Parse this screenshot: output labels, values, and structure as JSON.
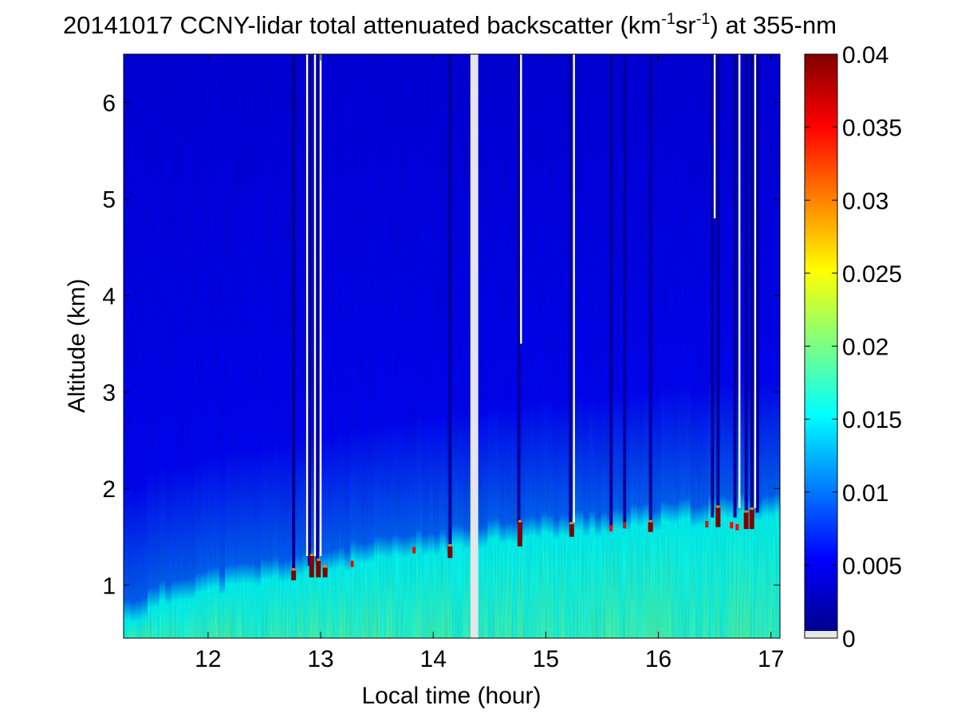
{
  "chart_data": {
    "type": "heatmap",
    "title": {
      "main": "20141017 CCNY-lidar total attenuated backscatter (km",
      "exp1": "-1",
      "mid": "sr",
      "exp2": "-1",
      "end": ") at 355-nm"
    },
    "xlabel": "Local time (hour)",
    "ylabel": "Altitude (km)",
    "xlim": [
      11.25,
      17.08
    ],
    "ylim": [
      0.45,
      6.5
    ],
    "xticks": [
      12,
      13,
      14,
      15,
      16,
      17
    ],
    "yticks": [
      1,
      2,
      3,
      4,
      5,
      6
    ],
    "colorbar": {
      "colormap": "jet",
      "range": [
        0,
        0.04
      ],
      "ticks": [
        "0",
        "0.005",
        "0.01",
        "0.015",
        "0.02",
        "0.025",
        "0.03",
        "0.035",
        "0.04"
      ],
      "tick_values": [
        0,
        0.005,
        0.01,
        0.015,
        0.02,
        0.025,
        0.03,
        0.035,
        0.04
      ],
      "below_range_color": "#e6e6e6"
    },
    "data_gap": {
      "x_start": 14.33,
      "x_end": 14.4,
      "color": "#e6e6e6"
    },
    "profile_levels": {
      "free_troposphere": 0.004,
      "upper_boundary_layer": 0.009,
      "boundary_layer_base": 0.015,
      "boundary_layer_peak": 0.018
    },
    "boundary_layer_top": [
      {
        "x": 11.3,
        "y": 0.62
      },
      {
        "x": 11.8,
        "y": 0.9
      },
      {
        "x": 12.3,
        "y": 0.98
      },
      {
        "x": 12.8,
        "y": 1.1
      },
      {
        "x": 13.3,
        "y": 1.2
      },
      {
        "x": 13.8,
        "y": 1.3
      },
      {
        "x": 14.3,
        "y": 1.38
      },
      {
        "x": 14.45,
        "y": 1.45
      },
      {
        "x": 15.0,
        "y": 1.5
      },
      {
        "x": 15.5,
        "y": 1.55
      },
      {
        "x": 16.0,
        "y": 1.6
      },
      {
        "x": 16.5,
        "y": 1.68
      },
      {
        "x": 17.05,
        "y": 1.72
      }
    ],
    "cloud_columns": [
      {
        "x": 12.76,
        "cloud_base": 1.05,
        "cloud_top": 1.15
      },
      {
        "x": 12.92,
        "cloud_base": 1.08,
        "cloud_top": 1.3
      },
      {
        "x": 12.98,
        "cloud_base": 1.08,
        "cloud_top": 1.25
      },
      {
        "x": 13.04,
        "cloud_base": 1.08,
        "cloud_top": 1.18
      },
      {
        "x": 14.15,
        "cloud_base": 1.28,
        "cloud_top": 1.4
      },
      {
        "x": 14.77,
        "cloud_base": 1.4,
        "cloud_top": 1.65
      },
      {
        "x": 15.23,
        "cloud_base": 1.5,
        "cloud_top": 1.63
      },
      {
        "x": 15.93,
        "cloud_base": 1.55,
        "cloud_top": 1.65
      },
      {
        "x": 16.53,
        "cloud_base": 1.6,
        "cloud_top": 1.8
      },
      {
        "x": 16.78,
        "cloud_base": 1.58,
        "cloud_top": 1.75
      },
      {
        "x": 16.83,
        "cloud_base": 1.58,
        "cloud_top": 1.78
      }
    ],
    "small_cloud_patches": [
      {
        "x": 13.28,
        "y": 1.22
      },
      {
        "x": 13.83,
        "y": 1.36
      },
      {
        "x": 15.58,
        "y": 1.59
      },
      {
        "x": 15.7,
        "y": 1.62
      },
      {
        "x": 16.43,
        "y": 1.63
      },
      {
        "x": 16.65,
        "y": 1.62
      },
      {
        "x": 16.7,
        "y": 1.6
      }
    ],
    "noise_columns": [
      {
        "x": 12.88,
        "from": 1.3,
        "to": 6.5
      },
      {
        "x": 12.95,
        "from": 1.3,
        "to": 6.5
      },
      {
        "x": 13.0,
        "from": 1.3,
        "to": 6.5
      },
      {
        "x": 14.78,
        "from": 3.5,
        "to": 6.5
      },
      {
        "x": 15.25,
        "from": 1.65,
        "to": 6.5
      },
      {
        "x": 16.5,
        "from": 4.8,
        "to": 6.5
      },
      {
        "x": 16.72,
        "from": 1.8,
        "to": 6.5
      },
      {
        "x": 16.86,
        "from": 1.8,
        "to": 6.5
      }
    ],
    "attenuated_columns": [
      {
        "x": 12.76,
        "from": 1.15,
        "to": 6.5
      },
      {
        "x": 12.9,
        "from": 1.2,
        "to": 6.5
      },
      {
        "x": 12.97,
        "from": 1.25,
        "to": 6.5
      },
      {
        "x": 14.15,
        "from": 1.4,
        "to": 6.5
      },
      {
        "x": 14.76,
        "from": 1.65,
        "to": 6.5
      },
      {
        "x": 15.22,
        "from": 1.65,
        "to": 6.5
      },
      {
        "x": 15.58,
        "from": 1.6,
        "to": 6.5
      },
      {
        "x": 15.7,
        "from": 1.65,
        "to": 6.5
      },
      {
        "x": 15.93,
        "from": 1.65,
        "to": 6.5
      },
      {
        "x": 16.48,
        "from": 1.7,
        "to": 6.5
      },
      {
        "x": 16.53,
        "from": 1.8,
        "to": 6.5
      },
      {
        "x": 16.68,
        "from": 1.7,
        "to": 6.5
      },
      {
        "x": 16.78,
        "from": 1.75,
        "to": 6.5
      },
      {
        "x": 16.83,
        "from": 1.75,
        "to": 6.5
      },
      {
        "x": 16.88,
        "from": 1.75,
        "to": 6.5
      }
    ]
  }
}
